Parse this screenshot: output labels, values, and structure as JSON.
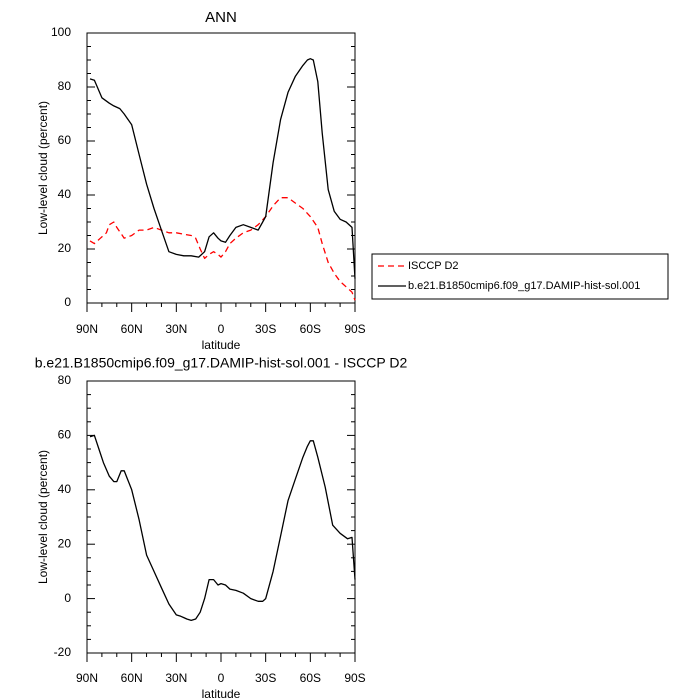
{
  "chart_data": [
    {
      "type": "line",
      "title": "ANN",
      "xlabel": "latitude",
      "ylabel": "Low-level cloud (percent)",
      "xlim": [
        90,
        -90
      ],
      "ylim": [
        0,
        100
      ],
      "x_ticks": [
        90,
        60,
        30,
        0,
        -30,
        -60,
        -90
      ],
      "x_tick_labels": [
        "90N",
        "60N",
        "30N",
        "0",
        "30S",
        "60S",
        "90S"
      ],
      "y_ticks": [
        0,
        20,
        40,
        60,
        80,
        100
      ],
      "y_tick_labels": [
        "0",
        "20",
        "40",
        "60",
        "80",
        "100"
      ],
      "grid": false,
      "legend_position": "right",
      "series": [
        {
          "name": "ISCCP D2",
          "color": "#ff0000",
          "dash": "dashed",
          "x": [
            88,
            85,
            81,
            77,
            75,
            72,
            70,
            65,
            60,
            55,
            50,
            45,
            40,
            35,
            30,
            25,
            20,
            17,
            14,
            11,
            8,
            5,
            2,
            0,
            -3,
            -6,
            -10,
            -15,
            -20,
            -25,
            -30,
            -35,
            -40,
            -45,
            -50,
            -55,
            -60,
            -65,
            -68,
            -72,
            -76,
            -80,
            -84,
            -88,
            -90
          ],
          "y": [
            23,
            22,
            24,
            26,
            29,
            30,
            28,
            24,
            25,
            27,
            27,
            28,
            27,
            26,
            26,
            25.5,
            25,
            24,
            20,
            16.5,
            18,
            19,
            18,
            17,
            19,
            22,
            24,
            26,
            27,
            29,
            32,
            36,
            39,
            39,
            37,
            35,
            32,
            28,
            22,
            15,
            11,
            8,
            6,
            4,
            1
          ]
        },
        {
          "name": "b.e21.B1850cmip6.f09_g17.DAMIP-hist-sol.001",
          "color": "#000000",
          "dash": "solid",
          "x": [
            88,
            85,
            80,
            75,
            72,
            68,
            65,
            60,
            55,
            50,
            45,
            40,
            35,
            30,
            25,
            20,
            15,
            11,
            8,
            5,
            2,
            0,
            -3,
            -6,
            -10,
            -15,
            -20,
            -25,
            -28,
            -30,
            -35,
            -40,
            -45,
            -50,
            -55,
            -58,
            -60,
            -62,
            -65,
            -68,
            -72,
            -76,
            -80,
            -84,
            -88,
            -90
          ],
          "y": [
            83,
            82.5,
            76,
            74,
            73,
            72,
            70,
            66,
            55,
            44,
            35,
            27,
            19,
            18,
            17.5,
            17.5,
            17,
            19,
            24.5,
            26,
            24,
            23,
            22.5,
            25,
            28,
            29,
            28,
            27,
            30,
            32,
            52,
            68,
            78,
            84,
            88,
            90,
            90.5,
            90,
            82,
            63,
            42,
            34,
            31,
            30,
            28,
            9
          ]
        }
      ]
    },
    {
      "type": "line",
      "title": "b.e21.B1850cmip6.f09_g17.DAMIP-hist-sol.001 - ISCCP D2",
      "xlabel": "latitude",
      "ylabel": "Low-level cloud (percent)",
      "xlim": [
        90,
        -90
      ],
      "ylim": [
        -20,
        80
      ],
      "x_ticks": [
        90,
        60,
        30,
        0,
        -30,
        -60,
        -90
      ],
      "x_tick_labels": [
        "90N",
        "60N",
        "30N",
        "0",
        "30S",
        "60S",
        "90S"
      ],
      "y_ticks": [
        -20,
        0,
        20,
        40,
        60,
        80
      ],
      "y_tick_labels": [
        "-20",
        "0",
        "20",
        "40",
        "60",
        "80"
      ],
      "grid": false,
      "series": [
        {
          "name": "",
          "color": "#000000",
          "dash": "solid",
          "x": [
            88,
            85,
            82,
            79,
            75,
            72,
            70,
            67,
            65,
            60,
            55,
            50,
            45,
            40,
            35,
            30,
            27,
            25,
            23,
            20,
            17,
            14,
            11,
            8,
            5,
            2,
            0,
            -3,
            -6,
            -10,
            -15,
            -20,
            -25,
            -28,
            -30,
            -35,
            -40,
            -45,
            -50,
            -55,
            -58,
            -60,
            -62,
            -65,
            -70,
            -75,
            -80,
            -85,
            -88,
            -90
          ],
          "y": [
            59.5,
            60,
            55,
            50,
            45,
            43,
            43,
            47,
            47,
            40,
            29,
            16,
            10,
            4,
            -2,
            -6,
            -6.5,
            -7,
            -7.5,
            -8,
            -7.5,
            -5,
            0,
            7,
            7,
            5,
            5.5,
            5,
            3.5,
            3,
            2,
            0,
            -1,
            -1,
            0,
            10,
            23,
            36,
            44,
            52,
            56,
            58,
            58,
            52,
            41,
            27,
            24,
            22,
            22.5,
            7
          ]
        }
      ]
    }
  ]
}
